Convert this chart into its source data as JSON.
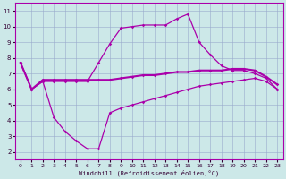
{
  "xlabel": "Windchill (Refroidissement éolien,°C)",
  "x_ticks": [
    0,
    1,
    2,
    3,
    4,
    5,
    6,
    7,
    8,
    9,
    10,
    11,
    12,
    13,
    14,
    15,
    16,
    17,
    18,
    19,
    20,
    21,
    22,
    23
  ],
  "ylim": [
    1.5,
    11.5
  ],
  "xlim": [
    -0.5,
    23.5
  ],
  "y_ticks": [
    2,
    3,
    4,
    5,
    6,
    7,
    8,
    9,
    10,
    11
  ],
  "background_color": "#cce8e8",
  "line_color": "#aa00aa",
  "grid_color": "#99aacc",
  "line_upper_x": [
    0,
    1,
    2,
    3,
    4,
    5,
    6,
    7,
    8,
    9,
    10,
    11,
    12,
    13,
    14,
    15,
    16,
    17,
    18,
    19,
    20,
    21,
    22,
    23
  ],
  "line_upper_y": [
    7.7,
    6.0,
    6.5,
    6.5,
    6.5,
    6.5,
    6.5,
    7.7,
    8.9,
    9.9,
    10.0,
    10.1,
    10.1,
    10.1,
    10.5,
    10.8,
    9.0,
    8.2,
    7.5,
    7.2,
    7.2,
    7.0,
    6.7,
    6.0
  ],
  "line_flat_x": [
    0,
    1,
    2,
    3,
    4,
    5,
    6,
    7,
    8,
    9,
    10,
    11,
    12,
    13,
    14,
    15,
    16,
    17,
    18,
    19,
    20,
    21,
    22,
    23
  ],
  "line_flat_y": [
    7.7,
    6.0,
    6.6,
    6.6,
    6.6,
    6.6,
    6.6,
    6.6,
    6.6,
    6.7,
    6.8,
    6.9,
    6.9,
    7.0,
    7.1,
    7.1,
    7.2,
    7.2,
    7.2,
    7.3,
    7.3,
    7.2,
    6.8,
    6.3
  ],
  "line_lower_x": [
    0,
    1,
    2,
    3,
    4,
    5,
    6,
    7,
    8,
    9,
    10,
    11,
    12,
    13,
    14,
    15,
    16,
    17,
    18,
    19,
    20,
    21,
    22,
    23
  ],
  "line_lower_y": [
    7.7,
    6.0,
    6.5,
    4.2,
    3.3,
    2.7,
    2.2,
    2.2,
    4.5,
    4.8,
    5.0,
    5.2,
    5.4,
    5.6,
    5.8,
    6.0,
    6.2,
    6.3,
    6.4,
    6.5,
    6.6,
    6.7,
    6.5,
    6.0
  ]
}
